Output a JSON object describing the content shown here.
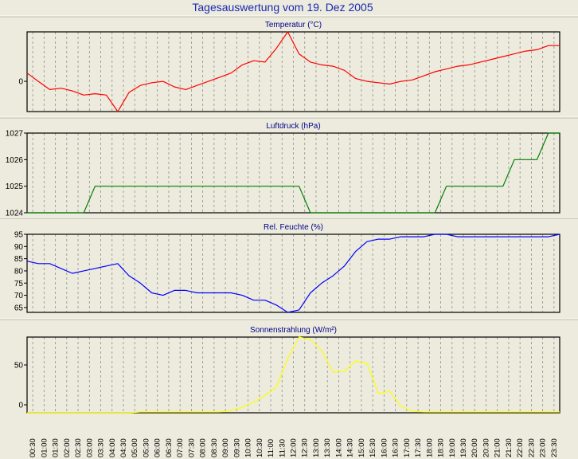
{
  "title": "Tagesauswertung vom 19. Dez 2005",
  "x_labels": [
    "00:30",
    "01:00",
    "01:30",
    "02:00",
    "02:30",
    "03:00",
    "03:30",
    "04:00",
    "04:30",
    "05:00",
    "05:30",
    "06:00",
    "06:30",
    "07:00",
    "07:30",
    "08:00",
    "08:30",
    "09:00",
    "09:30",
    "10:00",
    "10:30",
    "11:00",
    "11:30",
    "12:00",
    "12:30",
    "13:00",
    "13:30",
    "14:00",
    "14:30",
    "15:00",
    "15:30",
    "16:00",
    "16:30",
    "17:00",
    "17:30",
    "18:00",
    "18:30",
    "19:00",
    "19:30",
    "20:00",
    "20:30",
    "21:00",
    "21:30",
    "22:00",
    "22:30",
    "23:00",
    "23:30"
  ],
  "colors": {
    "temperature": "#ff0000",
    "pressure": "#008000",
    "humidity": "#0000ff",
    "radiation": "#ffff00"
  },
  "chart_data": [
    {
      "type": "line",
      "title": "Temperatur (°C)",
      "yticks": [
        0
      ],
      "ylim": [
        -1.1,
        1.8
      ],
      "x": [
        0,
        0.5,
        1,
        1.5,
        2,
        2.5,
        3,
        3.5,
        4,
        4.5,
        5,
        5.5,
        6,
        6.5,
        7,
        7.5,
        8,
        8.5,
        9,
        9.5,
        10,
        10.5,
        11,
        11.5,
        12,
        12.5,
        13,
        13.5,
        14,
        14.5,
        15,
        15.5,
        16,
        16.5,
        17,
        17.5,
        18,
        18.5,
        19,
        19.5,
        20,
        20.5,
        21,
        21.5,
        22,
        22.5,
        23,
        23.5
      ],
      "series": [
        {
          "values": [
            0.3,
            0,
            -0.3,
            -0.25,
            -0.35,
            -0.5,
            -0.45,
            -0.5,
            -1.1,
            -0.4,
            -0.15,
            -0.05,
            0,
            -0.2,
            -0.3,
            -0.15,
            0,
            0.15,
            0.3,
            0.6,
            0.75,
            0.7,
            1.2,
            1.8,
            1.0,
            0.7,
            0.6,
            0.55,
            0.4,
            0.1,
            0,
            -0.05,
            -0.1,
            0,
            0.05,
            0.2,
            0.35,
            0.45,
            0.55,
            0.6,
            0.7,
            0.8,
            0.9,
            1.0,
            1.1,
            1.15,
            1.3,
            1.3
          ]
        }
      ]
    },
    {
      "type": "line",
      "title": "Luftdruck (hPa)",
      "yticks": [
        1024,
        1025,
        1026,
        1027
      ],
      "ylim": [
        1024,
        1027
      ],
      "x": [
        0,
        0.5,
        1,
        1.5,
        2,
        2.5,
        3,
        3.5,
        4,
        4.5,
        5,
        5.5,
        6,
        6.5,
        7,
        7.5,
        8,
        8.5,
        9,
        9.5,
        10,
        10.5,
        11,
        11.5,
        12,
        12.5,
        13,
        13.5,
        14,
        14.5,
        15,
        15.5,
        16,
        16.5,
        17,
        17.5,
        18,
        18.5,
        19,
        19.5,
        20,
        20.5,
        21,
        21.5,
        22,
        22.5,
        23,
        23.5
      ],
      "series": [
        {
          "values": [
            1024,
            1024,
            1024,
            1024,
            1024,
            1024,
            1025,
            1025,
            1025,
            1025,
            1025,
            1025,
            1025,
            1025,
            1025,
            1025,
            1025,
            1025,
            1025,
            1025,
            1025,
            1025,
            1025,
            1025,
            1025,
            1024,
            1024,
            1024,
            1024,
            1024,
            1024,
            1024,
            1024,
            1024,
            1024,
            1024,
            1024,
            1025,
            1025,
            1025,
            1025,
            1025,
            1025,
            1026,
            1026,
            1026,
            1027,
            1027
          ]
        }
      ]
    },
    {
      "type": "line",
      "title": "Rel. Feuchte (%)",
      "yticks": [
        65,
        70,
        75,
        80,
        85,
        90,
        95
      ],
      "ylim": [
        63,
        95
      ],
      "x": [
        0,
        0.5,
        1,
        1.5,
        2,
        2.5,
        3,
        3.5,
        4,
        4.5,
        5,
        5.5,
        6,
        6.5,
        7,
        7.5,
        8,
        8.5,
        9,
        9.5,
        10,
        10.5,
        11,
        11.5,
        12,
        12.5,
        13,
        13.5,
        14,
        14.5,
        15,
        15.5,
        16,
        16.5,
        17,
        17.5,
        18,
        18.5,
        19,
        19.5,
        20,
        20.5,
        21,
        21.5,
        22,
        22.5,
        23,
        23.5
      ],
      "series": [
        {
          "values": [
            84,
            83,
            83,
            81,
            79,
            80,
            81,
            82,
            83,
            78,
            75,
            71,
            70,
            72,
            72,
            71,
            71,
            71,
            71,
            70,
            68,
            68,
            66,
            63,
            64,
            71,
            75,
            78,
            82,
            88,
            92,
            93,
            93,
            94,
            94,
            94,
            95,
            95,
            94,
            94,
            94,
            94,
            94,
            94,
            94,
            94,
            94,
            95
          ]
        }
      ]
    },
    {
      "type": "line",
      "title": "Sonnenstrahlung (W/m²)",
      "yticks": [
        0,
        50
      ],
      "ylim": [
        -10,
        85
      ],
      "x": [
        0,
        0.5,
        1,
        1.5,
        2,
        2.5,
        3,
        3.5,
        4,
        4.5,
        5,
        5.5,
        6,
        6.5,
        7,
        7.5,
        8,
        8.5,
        9,
        9.5,
        10,
        10.5,
        11,
        11.5,
        12,
        12.5,
        13,
        13.5,
        14,
        14.5,
        15,
        15.5,
        16,
        16.5,
        17,
        17.5,
        18,
        18.5,
        19,
        19.5,
        20,
        20.5,
        21,
        21.5,
        22,
        22.5,
        23,
        23.5
      ],
      "series": [
        {
          "values": [
            -10,
            -10,
            -10,
            -10,
            -10,
            -10,
            -10,
            -10,
            -10,
            -10,
            -9,
            -9,
            -9,
            -9,
            -9,
            -9,
            -9,
            -9,
            -7,
            -3,
            3,
            12,
            22,
            58,
            85,
            82,
            68,
            41,
            42,
            55,
            52,
            14,
            17,
            -2,
            -8,
            -9,
            -9,
            -9,
            -9,
            -9,
            -9,
            -9,
            -9,
            -9,
            -9,
            -9,
            -9,
            -9
          ]
        }
      ]
    }
  ]
}
